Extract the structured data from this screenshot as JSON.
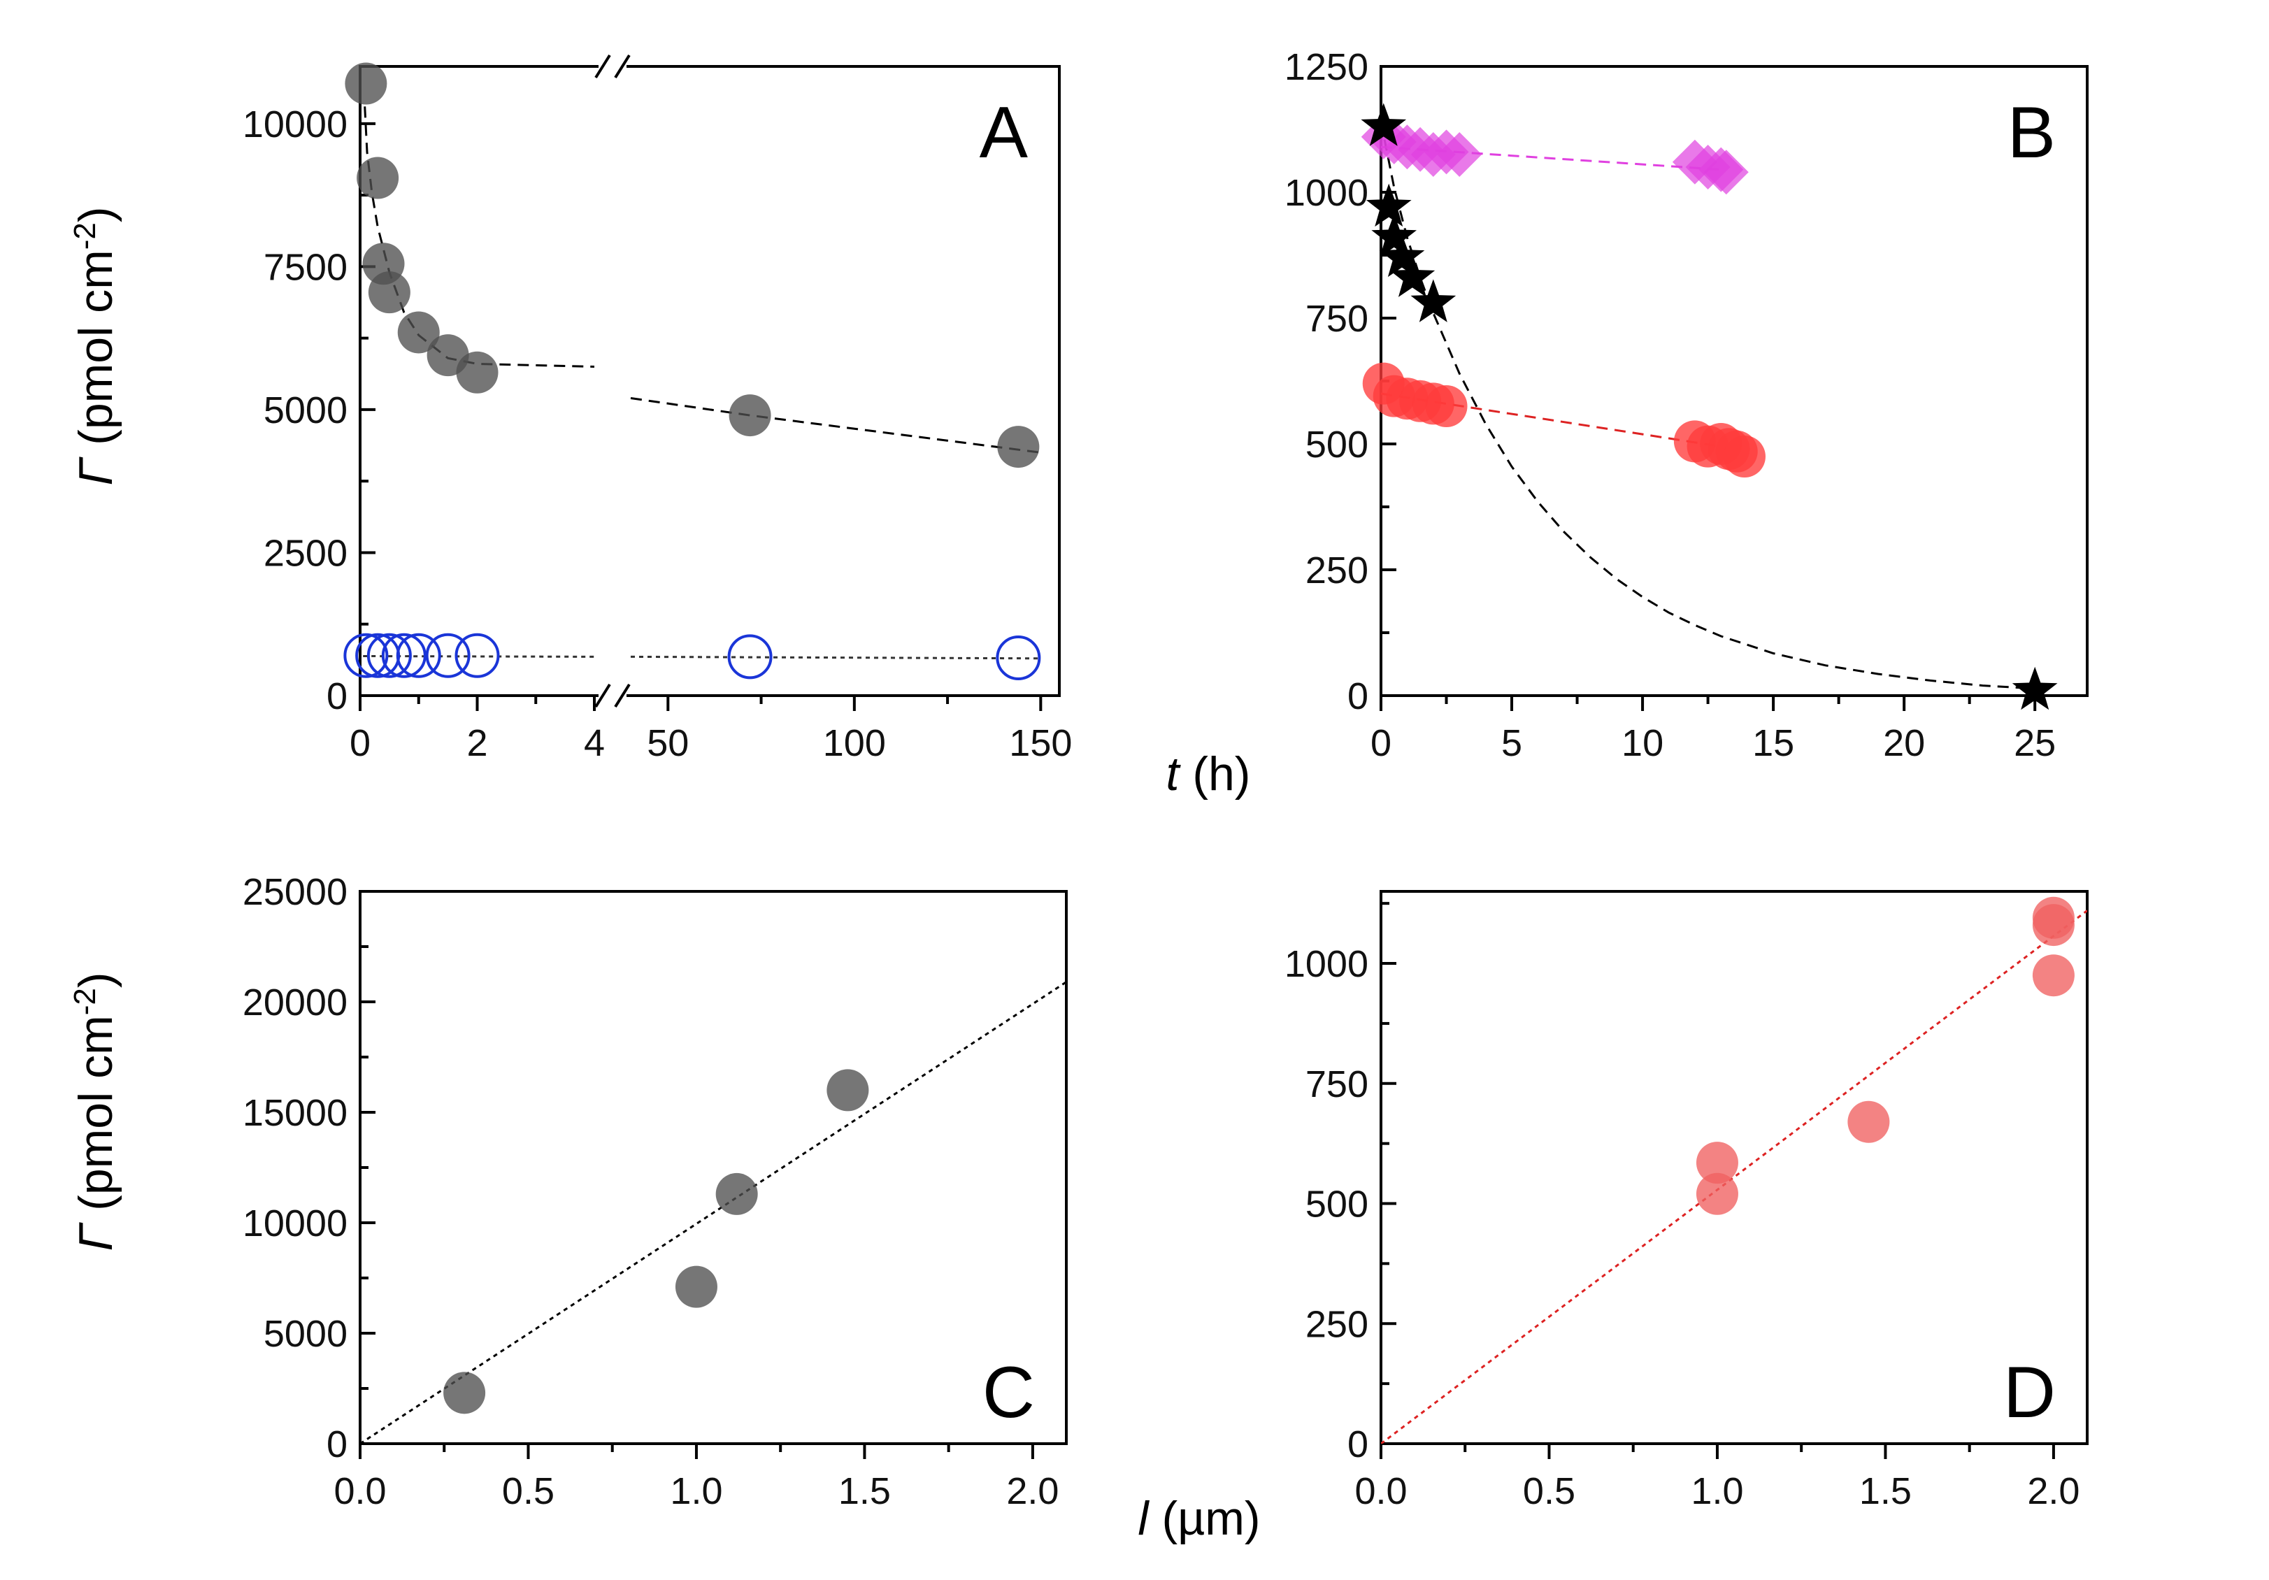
{
  "chart_data": [
    {
      "panel": "A",
      "type": "scatter",
      "broken_x_axis": true,
      "x_segments": [
        {
          "xlim": [
            0,
            4
          ],
          "ticks": [
            0,
            2,
            4
          ],
          "tick_labels": [
            "0",
            "2",
            "4"
          ]
        },
        {
          "xlim": [
            40,
            155
          ],
          "ticks": [
            50,
            100,
            150
          ],
          "tick_labels": [
            "50",
            "100",
            "150"
          ]
        }
      ],
      "ylim": [
        0,
        11000
      ],
      "yticks": [
        0,
        2500,
        5000,
        7500,
        10000
      ],
      "ytick_labels": [
        "0",
        "2500",
        "5000",
        "7500",
        "10000"
      ],
      "series": [
        {
          "name": "filled-grey",
          "color": "#505050",
          "marker": "filled-circle",
          "x": [
            0.1,
            0.3,
            0.4,
            0.5,
            1.0,
            1.5,
            2.0,
            72,
            144
          ],
          "y": [
            10700,
            9050,
            7550,
            7050,
            6350,
            5950,
            5650,
            4900,
            4350
          ]
        },
        {
          "name": "open-blue",
          "color": "#1a35d8",
          "marker": "open-circle",
          "x": [
            0.1,
            0.3,
            0.5,
            0.75,
            1.0,
            1.5,
            2.0,
            72,
            144
          ],
          "y": [
            700,
            700,
            700,
            700,
            700,
            700,
            700,
            680,
            660
          ]
        }
      ],
      "fits": [
        {
          "color": "#000000",
          "style": "dashed",
          "x": [
            0.08,
            0.12,
            0.2,
            0.3,
            0.5,
            0.75,
            1.0,
            1.5,
            2.0,
            4.0
          ],
          "y": [
            10300,
            9500,
            8800,
            8200,
            7400,
            6700,
            6300,
            5900,
            5800,
            5750
          ]
        },
        {
          "color": "#000000",
          "style": "dashed",
          "x": [
            40,
            72,
            150
          ],
          "y": [
            5200,
            4900,
            4250
          ]
        },
        {
          "color": "#333333",
          "style": "dotted",
          "x": [
            0.05,
            4.0
          ],
          "y": [
            690,
            680
          ]
        },
        {
          "color": "#333333",
          "style": "dotted",
          "x": [
            40,
            150
          ],
          "y": [
            680,
            650
          ]
        }
      ],
      "break_mark": "//",
      "label": "A"
    },
    {
      "panel": "B",
      "type": "scatter",
      "xlim": [
        0,
        27
      ],
      "xticks": [
        0,
        5,
        10,
        15,
        20,
        25
      ],
      "xtick_labels": [
        "0",
        "5",
        "10",
        "15",
        "20",
        "25"
      ],
      "ylim": [
        0,
        1250
      ],
      "yticks": [
        0,
        250,
        500,
        750,
        1000,
        1250
      ],
      "ytick_labels": [
        "0",
        "250",
        "500",
        "750",
        "1000",
        "1250"
      ],
      "series": [
        {
          "name": "magenta-diamonds",
          "color": "#e040e0",
          "marker": "diamond",
          "x": [
            0.1,
            0.5,
            1.0,
            1.5,
            2.0,
            2.5,
            3.0,
            12,
            12.5,
            13,
            13.2
          ],
          "y": [
            1110,
            1100,
            1090,
            1085,
            1075,
            1080,
            1075,
            1060,
            1050,
            1045,
            1040
          ]
        },
        {
          "name": "black-stars",
          "color": "#000000",
          "marker": "star",
          "x": [
            0.1,
            0.3,
            0.5,
            0.8,
            1.2,
            2.0,
            25
          ],
          "y": [
            1130,
            970,
            910,
            870,
            830,
            780,
            10
          ]
        },
        {
          "name": "red-circles",
          "color": "#ff3b3b",
          "marker": "filled-circle",
          "x": [
            0.1,
            0.5,
            1.0,
            1.5,
            2.0,
            2.5,
            12,
            12.5,
            13,
            13.3,
            13.6,
            13.9
          ],
          "y": [
            620,
            595,
            590,
            585,
            580,
            575,
            505,
            495,
            500,
            490,
            485,
            475
          ]
        }
      ],
      "fits": [
        {
          "color": "#e040e0",
          "style": "dashed",
          "x": [
            0,
            13
          ],
          "y": [
            1090,
            1045
          ]
        },
        {
          "color": "#dd2222",
          "style": "dashed",
          "x": [
            0,
            13
          ],
          "y": [
            600,
            495
          ]
        },
        {
          "color": "#000000",
          "style": "dashed",
          "x": [
            0,
            0.5,
            1,
            1.5,
            2,
            2.5,
            3,
            4,
            5,
            6,
            7,
            8,
            9,
            10,
            11,
            12,
            13,
            15,
            17,
            19,
            21,
            23,
            25
          ],
          "y": [
            1140,
            1010,
            910,
            830,
            760,
            700,
            640,
            540,
            455,
            385,
            325,
            275,
            232,
            196,
            165,
            140,
            118,
            84,
            60,
            43,
            30,
            20,
            14
          ]
        }
      ],
      "label": "B"
    },
    {
      "panel": "C",
      "type": "scatter",
      "xlim": [
        0,
        2.1
      ],
      "xticks": [
        0.0,
        0.5,
        1.0,
        1.5,
        2.0
      ],
      "xtick_labels": [
        "0.0",
        "0.5",
        "1.0",
        "1.5",
        "2.0"
      ],
      "ylim": [
        0,
        25000
      ],
      "yticks": [
        0,
        5000,
        10000,
        15000,
        20000,
        25000
      ],
      "ytick_labels": [
        "0",
        "5000",
        "10000",
        "15000",
        "20000",
        "25000"
      ],
      "series": [
        {
          "name": "filled-grey",
          "color": "#505050",
          "marker": "filled-circle",
          "x": [
            0.31,
            1.0,
            1.12,
            1.45
          ],
          "y": [
            2300,
            7100,
            11300,
            16000
          ]
        }
      ],
      "fits": [
        {
          "color": "#000000",
          "style": "dotted",
          "x": [
            0,
            2.1
          ],
          "y": [
            0,
            20900
          ]
        }
      ],
      "label": "C"
    },
    {
      "panel": "D",
      "type": "scatter",
      "xlim": [
        0,
        2.1
      ],
      "xticks": [
        0.0,
        0.5,
        1.0,
        1.5,
        2.0
      ],
      "xtick_labels": [
        "0.0",
        "0.5",
        "1.0",
        "1.5",
        "2.0"
      ],
      "ylim": [
        0,
        1150
      ],
      "yticks": [
        0,
        250,
        500,
        750,
        1000
      ],
      "ytick_labels": [
        "0",
        "250",
        "500",
        "750",
        "1000"
      ],
      "series": [
        {
          "name": "red-circles",
          "color": "#f06060",
          "marker": "filled-circle",
          "x": [
            1.0,
            1.0,
            1.45,
            2.0,
            2.0,
            2.0
          ],
          "y": [
            520,
            585,
            670,
            975,
            1080,
            1095
          ]
        }
      ],
      "fits": [
        {
          "color": "#dd2222",
          "style": "dotted",
          "x": [
            0,
            2.1
          ],
          "y": [
            0,
            1110
          ]
        }
      ],
      "label": "D"
    }
  ],
  "axis_titles": {
    "gamma_symbol": "Γ",
    "gamma_unit": "(pmol cm",
    "gamma_exp": "-2",
    "gamma_close": ")",
    "time_symbol": "t",
    "time_unit": "(h)",
    "thickness_symbol": "l",
    "thickness_unit": "(µm)"
  }
}
